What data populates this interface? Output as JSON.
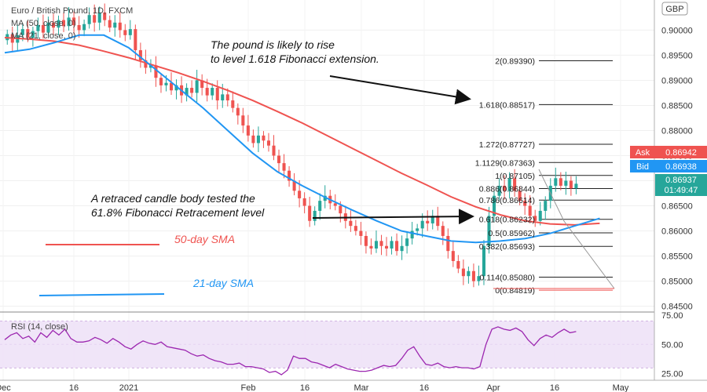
{
  "chart_data": [
    {
      "type": "candlestick",
      "title": "Euro / British Pound, 1D, FXCM",
      "currency": "GBP",
      "ylim": [
        0.844,
        0.906
      ],
      "yticks": [
        0.9,
        0.895,
        0.89,
        0.885,
        0.88,
        0.875,
        0.87,
        0.865,
        0.86,
        0.855,
        0.85,
        0.845
      ],
      "ytick_labels": [
        "0.90000",
        "0.89500",
        "0.89000",
        "0.88500",
        "0.88000",
        "0.87500",
        "0.87000",
        "0.86500",
        "0.86000",
        "0.85500",
        "0.85000",
        "0.84500"
      ],
      "xlabels": [
        "Dec",
        "16",
        "2021",
        "Feb",
        "16",
        "Mar",
        "16",
        "Apr",
        "16",
        "May"
      ],
      "up_color": "#26a69a",
      "down_color": "#ef5350",
      "series": [
        {
          "name": "MA (50, close, 0)",
          "color": "#ef5350",
          "values": [
            0.8985,
            0.8982,
            0.8978,
            0.897,
            0.8958,
            0.8945,
            0.893,
            0.8915,
            0.8898,
            0.888,
            0.886,
            0.8838,
            0.8815,
            0.879,
            0.8765,
            0.874,
            0.8715,
            0.8692,
            0.8668,
            0.8648,
            0.8632,
            0.862,
            0.8614,
            0.8612,
            0.8615
          ]
        },
        {
          "name": "MA (21, close, 0)",
          "color": "#2196f3",
          "values": [
            0.8955,
            0.8962,
            0.8975,
            0.899,
            0.899,
            0.8965,
            0.8925,
            0.8885,
            0.8845,
            0.88,
            0.8755,
            0.8718,
            0.869,
            0.8665,
            0.8642,
            0.862,
            0.86,
            0.859,
            0.858,
            0.8577,
            0.858,
            0.8585,
            0.8595,
            0.861,
            0.8625
          ]
        }
      ],
      "candles": [
        [
          0.898,
          0.8992
        ],
        [
          0.8992,
          0.8975
        ],
        [
          0.8975,
          0.899
        ],
        [
          0.899,
          0.9002
        ],
        [
          0.9002,
          0.8985
        ],
        [
          0.8985,
          0.8998
        ],
        [
          0.8998,
          0.901
        ],
        [
          0.901,
          0.8995
        ],
        [
          0.8995,
          0.9015
        ],
        [
          0.9015,
          0.9005
        ],
        [
          0.9005,
          0.902
        ],
        [
          0.902,
          0.9008
        ],
        [
          0.9008,
          0.9025
        ],
        [
          0.9025,
          0.901
        ],
        [
          0.901,
          0.9
        ],
        [
          0.9,
          0.9012
        ],
        [
          0.9012,
          0.903
        ],
        [
          0.903,
          0.9015
        ],
        [
          0.9015,
          0.9035
        ],
        [
          0.9035,
          0.902
        ],
        [
          0.902,
          0.9005
        ],
        [
          0.9005,
          0.9015
        ],
        [
          0.9015,
          0.9
        ],
        [
          0.9,
          0.899
        ],
        [
          0.899,
          0.9002
        ],
        [
          0.9002,
          0.896
        ],
        [
          0.896,
          0.894
        ],
        [
          0.894,
          0.8925
        ],
        [
          0.8925,
          0.893
        ],
        [
          0.893,
          0.8905
        ],
        [
          0.8905,
          0.889
        ],
        [
          0.889,
          0.8895
        ],
        [
          0.8895,
          0.888
        ],
        [
          0.888,
          0.889
        ],
        [
          0.889,
          0.887
        ],
        [
          0.887,
          0.8885
        ],
        [
          0.8885,
          0.8875
        ],
        [
          0.8875,
          0.89
        ],
        [
          0.89,
          0.8885
        ],
        [
          0.8885,
          0.887
        ],
        [
          0.887,
          0.8885
        ],
        [
          0.8885,
          0.886
        ],
        [
          0.886,
          0.8872
        ],
        [
          0.8872,
          0.886
        ],
        [
          0.886,
          0.8845
        ],
        [
          0.8845,
          0.883
        ],
        [
          0.883,
          0.881
        ],
        [
          0.881,
          0.879
        ],
        [
          0.879,
          0.8775
        ],
        [
          0.8775,
          0.879
        ],
        [
          0.879,
          0.878
        ],
        [
          0.878,
          0.877
        ],
        [
          0.877,
          0.875
        ],
        [
          0.875,
          0.8735
        ],
        [
          0.8735,
          0.872
        ],
        [
          0.872,
          0.87
        ],
        [
          0.87,
          0.868
        ],
        [
          0.868,
          0.8665
        ],
        [
          0.8665,
          0.865
        ],
        [
          0.865,
          0.862
        ],
        [
          0.862,
          0.864
        ],
        [
          0.864,
          0.866
        ],
        [
          0.866,
          0.867
        ],
        [
          0.867,
          0.8655
        ],
        [
          0.8655,
          0.865
        ],
        [
          0.865,
          0.8635
        ],
        [
          0.8635,
          0.862
        ],
        [
          0.862,
          0.861
        ],
        [
          0.861,
          0.86
        ],
        [
          0.86,
          0.859
        ],
        [
          0.859,
          0.857
        ],
        [
          0.857,
          0.8565
        ],
        [
          0.8565,
          0.858
        ],
        [
          0.858,
          0.857
        ],
        [
          0.857,
          0.8565
        ],
        [
          0.8565,
          0.858
        ],
        [
          0.858,
          0.856
        ],
        [
          0.856,
          0.857
        ],
        [
          0.857,
          0.8585
        ],
        [
          0.8585,
          0.86
        ],
        [
          0.86,
          0.8605
        ],
        [
          0.8605,
          0.862
        ],
        [
          0.862,
          0.8615
        ],
        [
          0.8615,
          0.863
        ],
        [
          0.863,
          0.861
        ],
        [
          0.861,
          0.859
        ],
        [
          0.859,
          0.856
        ],
        [
          0.856,
          0.854
        ],
        [
          0.854,
          0.8525
        ],
        [
          0.8525,
          0.851
        ],
        [
          0.851,
          0.852
        ],
        [
          0.852,
          0.85
        ],
        [
          0.85,
          0.851
        ],
        [
          0.851,
          0.857
        ],
        [
          0.857,
          0.863
        ],
        [
          0.863,
          0.867
        ],
        [
          0.867,
          0.869
        ],
        [
          0.869,
          0.868
        ],
        [
          0.868,
          0.8705
        ],
        [
          0.8705,
          0.868
        ],
        [
          0.868,
          0.866
        ],
        [
          0.866,
          0.865
        ],
        [
          0.865,
          0.863
        ],
        [
          0.863,
          0.862
        ],
        [
          0.862,
          0.864
        ],
        [
          0.864,
          0.866
        ],
        [
          0.866,
          0.869
        ],
        [
          0.869,
          0.8705
        ],
        [
          0.8705,
          0.869
        ],
        [
          0.869,
          0.87
        ],
        [
          0.87,
          0.8685
        ],
        [
          0.8685,
          0.8694
        ]
      ],
      "annotations": [
        {
          "id": "pound-rise-text",
          "line1": "The pound is likely to rise",
          "line2": "to level 1.618 Fibonacci extension."
        },
        {
          "id": "retraced-text",
          "line1": "A retraced candle body tested the",
          "line2": "61.8% Fibonacci Retracement level"
        },
        {
          "id": "sma50-label",
          "text": "50-day SMA",
          "color": "#ef5350"
        },
        {
          "id": "sma21-label",
          "text": "21-day SMA",
          "color": "#2196f3"
        }
      ],
      "fib_levels": [
        {
          "label": "2(0.89390)",
          "value": 0.8939
        },
        {
          "label": "1.618(0.88517)",
          "value": 0.88517
        },
        {
          "label": "1.272(0.87727)",
          "value": 0.87727
        },
        {
          "label": "1.1129(0.87363)",
          "value": 0.87363
        },
        {
          "label": "1(0.87105)",
          "value": 0.87105
        },
        {
          "label": "0.886(0.86844)",
          "value": 0.86844
        },
        {
          "label": "0.786(0.86614)",
          "value": 0.86614
        },
        {
          "label": "0.618(0.86232)",
          "value": 0.86232
        },
        {
          "label": "0.5(0.85962)",
          "value": 0.85962
        },
        {
          "label": "0.382(0.85693)",
          "value": 0.85693
        },
        {
          "label": "0.114(0.85080)",
          "value": 0.8508
        },
        {
          "label": "0(0.84819)",
          "value": 0.84819
        }
      ],
      "price_badges": {
        "ask_label": "Ask",
        "ask_value": "0.86942",
        "bid_label": "Bid",
        "bid_value": "0.86938",
        "last_value": "0.86937",
        "countdown": "01:49:47"
      }
    },
    {
      "type": "line",
      "title": "RSI (14, close)",
      "ylim": [
        20,
        77
      ],
      "yticks": [
        75,
        50,
        25
      ],
      "ytick_labels": [
        "75.00",
        "50.00",
        "25.00"
      ],
      "band": [
        30,
        70
      ],
      "color": "#9c27b0",
      "values": [
        54,
        58,
        60,
        55,
        57,
        52,
        60,
        56,
        62,
        58,
        63,
        55,
        52,
        52,
        53,
        56,
        54,
        51,
        55,
        52,
        48,
        46,
        50,
        53,
        51,
        50,
        52,
        48,
        47,
        46,
        45,
        42,
        40,
        41,
        38,
        36,
        35,
        33,
        33,
        34,
        31,
        31,
        30,
        29,
        26,
        27,
        24,
        28,
        40,
        38,
        38,
        35,
        34,
        32,
        30,
        33,
        31,
        29,
        28,
        27,
        27,
        28,
        30,
        32,
        31,
        32,
        38,
        45,
        48,
        40,
        33,
        32,
        34,
        31,
        30,
        31,
        30,
        30,
        29,
        31,
        50,
        63,
        65,
        63,
        62,
        64,
        61,
        54,
        49,
        55,
        58,
        56,
        60,
        63,
        60,
        61
      ]
    }
  ]
}
